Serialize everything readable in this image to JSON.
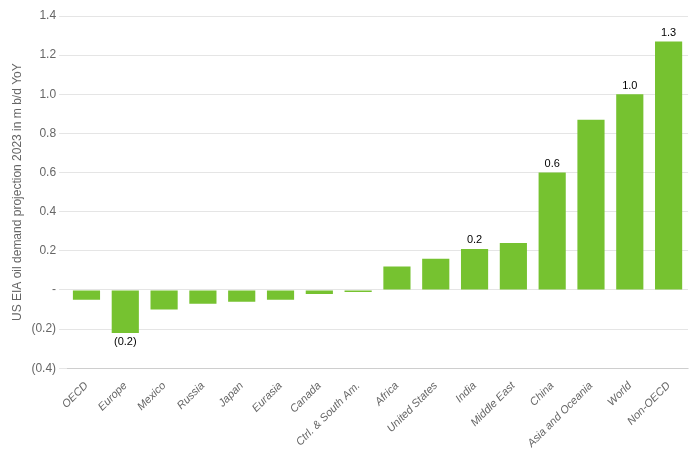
{
  "chart_data": {
    "type": "bar",
    "categories": [
      "OECD",
      "Europe",
      "Mexico",
      "Russia",
      "Japan",
      "Eurasia",
      "Canada",
      "Ctrl. & South Am.",
      "Africa",
      "United States",
      "India",
      "Middle East",
      "China",
      "Asia and Oceania",
      "World",
      "Non-OECD"
    ],
    "values": [
      -0.05,
      -0.22,
      -0.1,
      -0.07,
      -0.06,
      -0.05,
      -0.02,
      -0.01,
      0.12,
      0.16,
      0.21,
      0.24,
      0.6,
      0.87,
      1.0,
      1.27
    ],
    "value_labels": [
      null,
      "(0.2)",
      null,
      null,
      null,
      null,
      null,
      null,
      null,
      null,
      "0.2",
      null,
      "0.6",
      null,
      "1.0",
      "1.3"
    ],
    "data_labels": true,
    "color": "#76c230",
    "y_label": "US EIA oil demand projection 2023 in m b/d YoY",
    "ylim": [
      -0.4,
      1.4
    ],
    "yticks": [
      {
        "value": -0.4,
        "label": "(0.4)"
      },
      {
        "value": -0.2,
        "label": "(0.2)"
      },
      {
        "value": 0,
        "label": "-"
      },
      0.2,
      0.4,
      0.6,
      0.8,
      {
        "value": 1.0,
        "label": "1.0"
      },
      1.2,
      1.4
    ],
    "grid": true
  }
}
